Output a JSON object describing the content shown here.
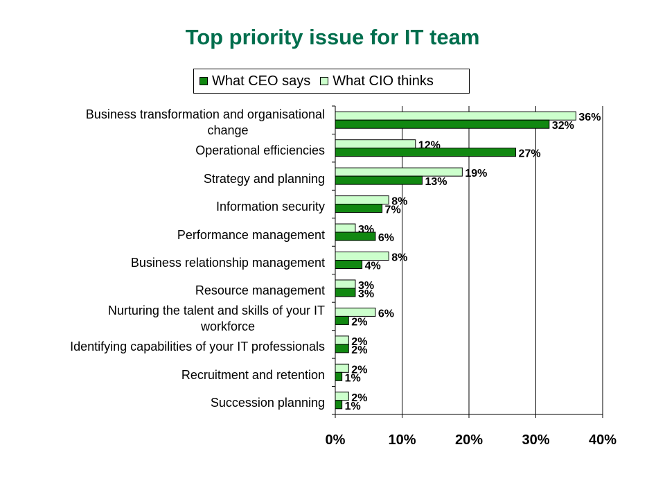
{
  "chart_data": {
    "type": "bar",
    "orientation": "horizontal",
    "title": "Top priority issue for IT team",
    "legend_position": "top",
    "categories": [
      "Business transformation and organisational change",
      "Operational efficiencies",
      "Strategy and planning",
      "Information security",
      "Performance management",
      "Business relationship management",
      "Resource management",
      "Nurturing the talent and skills of your IT workforce",
      "Identifying capabilities of your IT professionals",
      "Recruitment and retention",
      "Succession planning"
    ],
    "category_lines": [
      [
        "Business transformation and organisational",
        "change"
      ],
      [
        "Operational efficiencies"
      ],
      [
        "Strategy and planning"
      ],
      [
        "Information security"
      ],
      [
        "Performance management"
      ],
      [
        "Business relationship management"
      ],
      [
        "Resource management"
      ],
      [
        "Nurturing the talent and skills of your IT",
        "workforce"
      ],
      [
        "Identifying capabilities of your IT professionals"
      ],
      [
        "Recruitment and retention"
      ],
      [
        "Succession planning"
      ]
    ],
    "series": [
      {
        "name": "What CIO thinks",
        "color": "#ccffcc",
        "values": [
          36,
          12,
          19,
          8,
          3,
          8,
          3,
          6,
          2,
          2,
          2
        ],
        "labels": [
          "36%",
          "12%",
          "19%",
          "8%",
          "3%",
          "8%",
          "3%",
          "6%",
          "2%",
          "2%",
          "2%"
        ]
      },
      {
        "name": "What CEO says",
        "color": "#118811",
        "values": [
          32,
          27,
          13,
          7,
          6,
          4,
          3,
          2,
          2,
          1,
          1
        ],
        "labels": [
          "32%",
          "27%",
          "13%",
          "7%",
          "6%",
          "4%",
          "3%",
          "2%",
          "2%",
          "1%",
          "1%"
        ]
      }
    ],
    "xlim": [
      0,
      40
    ],
    "xticks": [
      0,
      10,
      20,
      30,
      40
    ],
    "xtick_labels": [
      "0%",
      "10%",
      "20%",
      "30%",
      "40%"
    ],
    "grid": "vertical"
  }
}
